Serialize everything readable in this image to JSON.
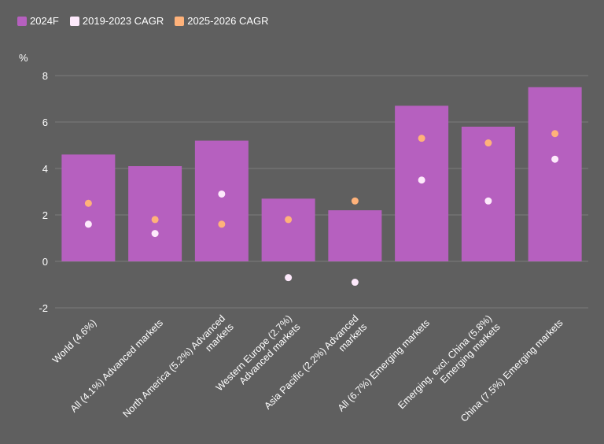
{
  "chart_data": {
    "type": "bar",
    "ylabel": "%",
    "ylim": [
      -2,
      8
    ],
    "yticks": [
      -2,
      0,
      2,
      4,
      6,
      8
    ],
    "grid": true,
    "legend_position": "top-left",
    "categories": [
      [
        "World (4.6%)"
      ],
      [
        "All (4.1%) Advanced markets"
      ],
      [
        "North America (5.2%) Advanced",
        "markets"
      ],
      [
        "Western Europe (2.7%)",
        "Advanced markets"
      ],
      [
        "Asia Pacific (2.2%) Advanced",
        "markets"
      ],
      [
        "All (6.7%) Emerging markets"
      ],
      [
        "Emerging, excl. China (5.8%)",
        "Emerging markets"
      ],
      [
        "China (7.5%) Emerging markets"
      ]
    ],
    "series": [
      {
        "name": "2024F",
        "kind": "bar",
        "color": "#b660bf",
        "values": [
          4.6,
          4.1,
          5.2,
          2.7,
          2.2,
          6.7,
          5.8,
          7.5
        ]
      },
      {
        "name": "2019-2023 CAGR",
        "kind": "dot",
        "color": "#fde9fb",
        "values": [
          1.6,
          1.2,
          2.9,
          -0.7,
          -0.9,
          3.5,
          2.6,
          4.4
        ]
      },
      {
        "name": "2025-2026 CAGR",
        "kind": "dot",
        "color": "#ffb27a",
        "values": [
          2.5,
          1.8,
          1.6,
          1.8,
          2.6,
          5.3,
          5.1,
          5.5
        ]
      }
    ]
  }
}
